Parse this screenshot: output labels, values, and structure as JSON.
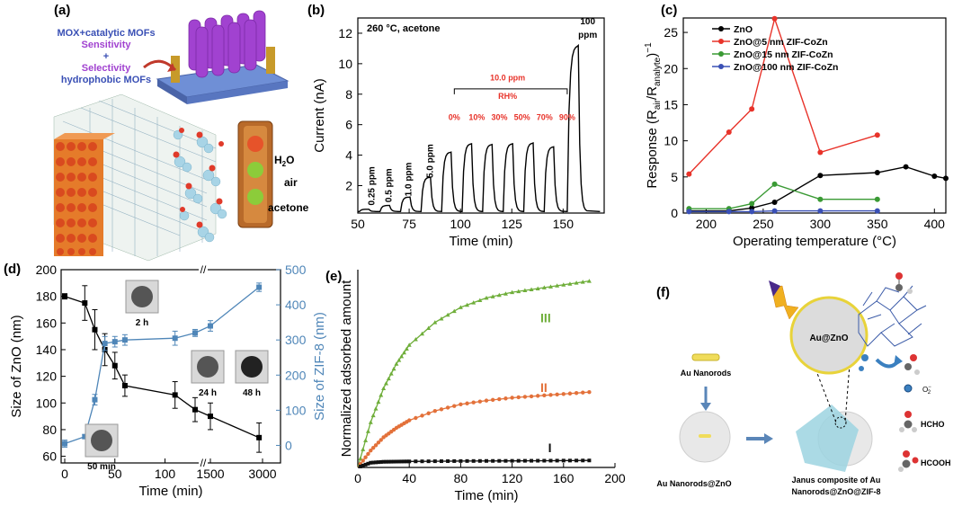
{
  "colors": {
    "black": "#000000",
    "red": "#e8332a",
    "green": "#3a9a34",
    "blue": "#3a50b5",
    "steel": "#4f86b8",
    "lime": "#6fae3a",
    "orange": "#e3713a",
    "purple": "#a142d0",
    "magenta": "#e0308a"
  },
  "panel_a": {
    "label": "(a)",
    "line1": "MOX+catalytic MOFs",
    "line2": "Sensitivity",
    "line3": "+",
    "line4": "Selectivity",
    "line5": "hydrophobic MOFs",
    "h2o": "H",
    "h2o_sub": "2",
    "h2o_o": "O",
    "air": "air",
    "acetone": "acetone"
  },
  "panel_f": {
    "label": "(f)",
    "au_nanorods": "Au Nanorods",
    "au_zno": "Au Nanorods@ZnO",
    "au_at_zno": "Au@ZnO",
    "janus1": "Janus composite of Au",
    "janus2": "Nanorods@ZnO@ZIF-8",
    "o2": "O",
    "o2_sup": "2",
    "o2_sub": "−",
    "hcho": "HCHO",
    "hcooh": "HCOOH"
  },
  "chart_data": [
    {
      "type": "line",
      "panel": "(b)",
      "title": "260 °C, acetone",
      "xlabel": "Time (min)",
      "ylabel": "Current (nA)",
      "xlim": [
        50,
        170
      ],
      "ylim": [
        0.2,
        13
      ],
      "xticks": [
        "50",
        "75",
        "100",
        "125",
        "150"
      ],
      "yticks": [
        "2",
        "4",
        "6",
        "8",
        "10",
        "12"
      ],
      "annotations": [
        {
          "text": "0.25 ppm",
          "x": 58,
          "y": 0.7
        },
        {
          "text": "0.5 ppm",
          "x": 66.5,
          "y": 0.9
        },
        {
          "text": "1.0 ppm",
          "x": 76,
          "y": 1.3
        },
        {
          "text": "5.0 ppm",
          "x": 86.5,
          "y": 2.5
        },
        {
          "text": "10.0 ppm",
          "x": 123,
          "y": 8.9
        },
        {
          "text": "RH%",
          "x": 123,
          "y": 7.7
        },
        {
          "text": "0%",
          "x": 97,
          "y": 6.3
        },
        {
          "text": "10%",
          "x": 108,
          "y": 6.3
        },
        {
          "text": "30%",
          "x": 119,
          "y": 6.3
        },
        {
          "text": "50%",
          "x": 130,
          "y": 6.3
        },
        {
          "text": "70%",
          "x": 141,
          "y": 6.3
        },
        {
          "text": "90%",
          "x": 152,
          "y": 6.3
        },
        {
          "text": "100",
          "x": 162,
          "y": 12.6
        },
        {
          "text": "ppm",
          "x": 162,
          "y": 11.7
        }
      ],
      "peaks": [
        {
          "t": 55,
          "v": 0.45
        },
        {
          "t": 65,
          "v": 0.7
        },
        {
          "t": 75,
          "v": 1.25
        },
        {
          "t": 85,
          "v": 2.55
        },
        {
          "t": 95,
          "v": 4.2
        },
        {
          "t": 105,
          "v": 4.75
        },
        {
          "t": 115,
          "v": 4.7
        },
        {
          "t": 125,
          "v": 4.75
        },
        {
          "t": 135,
          "v": 4.8
        },
        {
          "t": 145,
          "v": 4.55
        },
        {
          "t": 157,
          "v": 11.2
        }
      ],
      "baseline": 0.3
    },
    {
      "type": "line",
      "panel": "(c)",
      "xlabel": "Operating temperature (°C)",
      "ylabel": "Response (R",
      "ylabel_sub1": "air",
      "ylabel_mid": "/R",
      "ylabel_sub2": "analyte",
      "ylabel_end": ")",
      "ylabel_sup": "−1",
      "xlim": [
        180,
        410
      ],
      "ylim": [
        0,
        27
      ],
      "xticks": [
        "200",
        "250",
        "300",
        "350",
        "400"
      ],
      "yticks": [
        "0",
        "5",
        "10",
        "15",
        "20",
        "25"
      ],
      "legend_position": "top-right",
      "series": [
        {
          "name": "ZnO",
          "color": "#000000",
          "x": [
            185,
            220,
            240,
            260,
            300,
            350,
            375,
            400,
            410
          ],
          "y": [
            0.3,
            0.3,
            0.7,
            1.5,
            5.2,
            5.6,
            6.4,
            5.1,
            4.8
          ]
        },
        {
          "name": "ZnO@5 nm ZIF-CoZn",
          "color": "#e8332a",
          "x": [
            185,
            220,
            240,
            260,
            300,
            350
          ],
          "y": [
            5.4,
            11.2,
            14.4,
            26.9,
            8.4,
            10.8
          ]
        },
        {
          "name": "ZnO@15 nm ZIF-CoZn",
          "color": "#3a9a34",
          "x": [
            185,
            220,
            240,
            260,
            300,
            350
          ],
          "y": [
            0.6,
            0.6,
            1.3,
            4.0,
            1.9,
            1.9
          ]
        },
        {
          "name": "ZnO@100 nm ZIF-CoZn",
          "color": "#3a50b5",
          "x": [
            185,
            220,
            240,
            260,
            300,
            350
          ],
          "y": [
            0.2,
            0.2,
            0.2,
            0.3,
            0.3,
            0.3
          ]
        }
      ]
    },
    {
      "type": "line",
      "panel": "(d)",
      "xlabel": "Time (min)",
      "ylabel": "Size of ZnO (nm)",
      "ylabel2": "Size of ZIF-8 (nm)",
      "ylim": [
        55,
        200
      ],
      "ylim2": [
        -50,
        500
      ],
      "xticks": [
        "0",
        "50",
        "100",
        "1500",
        "3000"
      ],
      "yticks": [
        "60",
        "80",
        "100",
        "120",
        "140",
        "160",
        "180",
        "200"
      ],
      "yticks2": [
        "0",
        "100",
        "200",
        "300",
        "400",
        "500"
      ],
      "image_labels": [
        "2 h",
        "24 h",
        "48 h",
        "50 min"
      ],
      "series": [
        {
          "name": "ZnO",
          "color": "#000000",
          "x": [
            "0",
            "20",
            "30",
            "40",
            "50",
            "60",
            "110",
            "130",
            "1500",
            "2900"
          ],
          "y": [
            180,
            175,
            155,
            140,
            128,
            113,
            106,
            95,
            90,
            74
          ],
          "err": [
            2,
            13,
            15,
            12,
            10,
            8,
            10,
            9,
            10,
            11
          ]
        },
        {
          "name": "ZIF-8",
          "color": "#4f86b8",
          "x": [
            "0",
            "20",
            "30",
            "40",
            "50",
            "60",
            "110",
            "130",
            "1500",
            "2900"
          ],
          "y": [
            5,
            25,
            130,
            290,
            295,
            300,
            305,
            320,
            340,
            450
          ],
          "err": [
            10,
            5,
            15,
            20,
            15,
            15,
            20,
            10,
            15,
            12
          ]
        }
      ]
    },
    {
      "type": "line",
      "panel": "(e)",
      "xlabel": "Time (min)",
      "ylabel": "Normalized adsorbed amount",
      "xlim": [
        0,
        200
      ],
      "ylim": [
        0,
        1.05
      ],
      "xticks": [
        "0",
        "40",
        "80",
        "120",
        "160",
        "200"
      ],
      "series": [
        {
          "name": "III",
          "color": "#6fae3a",
          "x": [
            0,
            10,
            20,
            30,
            40,
            60,
            80,
            100,
            120,
            150,
            180
          ],
          "y": [
            0,
            0.24,
            0.42,
            0.55,
            0.65,
            0.77,
            0.85,
            0.9,
            0.93,
            0.96,
            0.99
          ]
        },
        {
          "name": "II",
          "color": "#e3713a",
          "x": [
            0,
            10,
            20,
            30,
            40,
            60,
            80,
            100,
            120,
            150,
            180
          ],
          "y": [
            0,
            0.09,
            0.16,
            0.21,
            0.25,
            0.3,
            0.335,
            0.355,
            0.37,
            0.385,
            0.4
          ]
        },
        {
          "name": "I",
          "color": "#111111",
          "x": [
            0,
            10,
            20,
            40,
            60,
            80,
            120,
            150,
            180
          ],
          "y": [
            0,
            0.025,
            0.03,
            0.032,
            0.033,
            0.034,
            0.035,
            0.036,
            0.037
          ]
        }
      ]
    }
  ]
}
